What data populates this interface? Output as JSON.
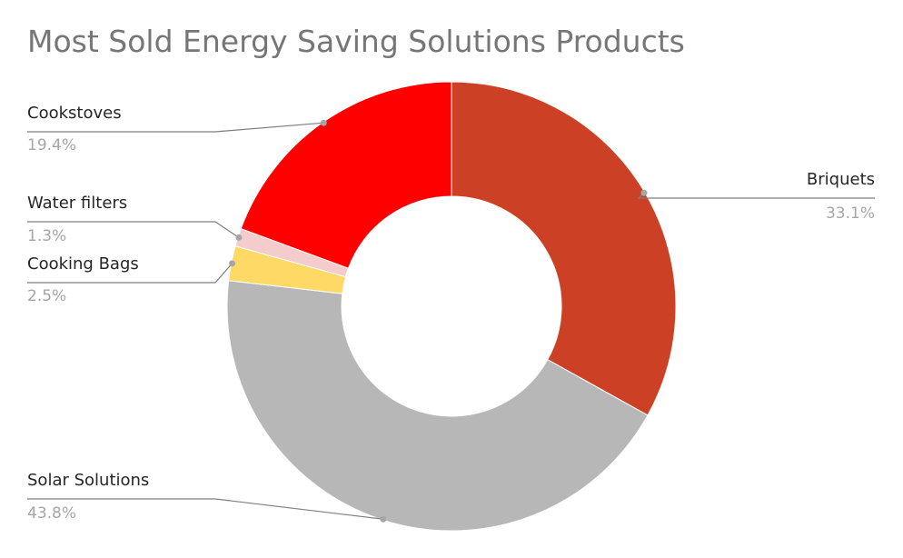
{
  "chart_data": {
    "type": "pie",
    "variant": "donut",
    "title": "Most Sold Energy Saving Solutions Products",
    "slices": [
      {
        "label": "Briquets",
        "value": 33.1,
        "percent_label": "33.1%",
        "color": "#cc4125"
      },
      {
        "label": "Solar Solutions",
        "value": 43.8,
        "percent_label": "43.8%",
        "color": "#b7b7b7"
      },
      {
        "label": "Cooking Bags",
        "value": 2.5,
        "percent_label": "2.5%",
        "color": "#ffd966"
      },
      {
        "label": "Water filters",
        "value": 1.3,
        "percent_label": "1.3%",
        "color": "#f4cccc"
      },
      {
        "label": "Cookstoves",
        "value": 19.4,
        "percent_label": "19.4%",
        "color": "#ff0000"
      }
    ],
    "legend": "none",
    "leader_line_color": "#7f7f7f"
  }
}
